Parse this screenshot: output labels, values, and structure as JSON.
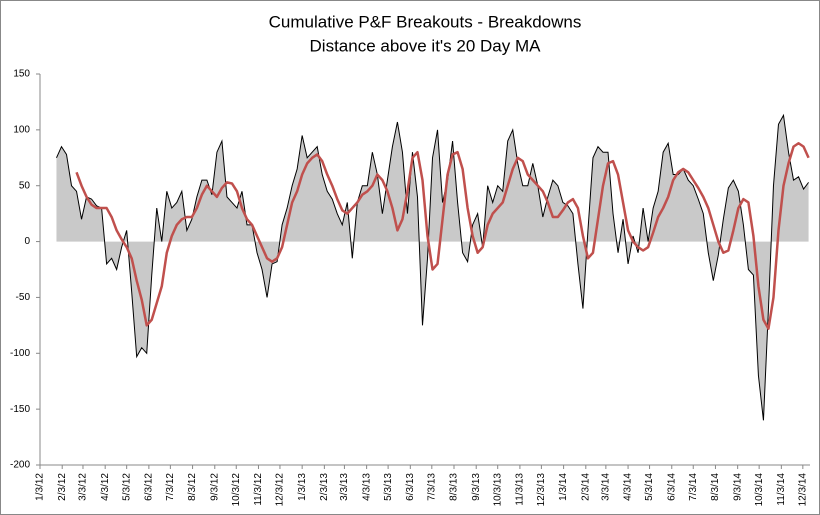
{
  "chart_data": {
    "type": "area",
    "title": "Cumulative P&F Breakouts - Breakdowns",
    "subtitle": "Distance above it's 20 Day MA",
    "x": [
      "2012-01-26",
      "2012-02-02",
      "2012-02-09",
      "2012-02-16",
      "2012-02-23",
      "2012-03-01",
      "2012-03-08",
      "2012-03-15",
      "2012-03-22",
      "2012-03-29",
      "2012-04-05",
      "2012-04-12",
      "2012-04-19",
      "2012-04-26",
      "2012-05-03",
      "2012-05-10",
      "2012-05-17",
      "2012-05-24",
      "2012-05-31",
      "2012-06-07",
      "2012-06-14",
      "2012-06-21",
      "2012-06-28",
      "2012-07-05",
      "2012-07-12",
      "2012-07-19",
      "2012-07-26",
      "2012-08-02",
      "2012-08-09",
      "2012-08-16",
      "2012-08-23",
      "2012-08-30",
      "2012-09-06",
      "2012-09-13",
      "2012-09-20",
      "2012-09-27",
      "2012-10-04",
      "2012-10-11",
      "2012-10-18",
      "2012-10-25",
      "2012-11-01",
      "2012-11-08",
      "2012-11-15",
      "2012-11-22",
      "2012-11-29",
      "2012-12-06",
      "2012-12-13",
      "2012-12-20",
      "2012-12-27",
      "2013-01-03",
      "2013-01-10",
      "2013-01-17",
      "2013-01-24",
      "2013-01-31",
      "2013-02-07",
      "2013-02-14",
      "2013-02-21",
      "2013-02-28",
      "2013-03-07",
      "2013-03-14",
      "2013-03-21",
      "2013-03-28",
      "2013-04-04",
      "2013-04-11",
      "2013-04-18",
      "2013-04-25",
      "2013-05-02",
      "2013-05-09",
      "2013-05-16",
      "2013-05-23",
      "2013-05-30",
      "2013-06-06",
      "2013-06-13",
      "2013-06-20",
      "2013-06-27",
      "2013-07-04",
      "2013-07-11",
      "2013-07-18",
      "2013-07-25",
      "2013-08-01",
      "2013-08-08",
      "2013-08-15",
      "2013-08-22",
      "2013-08-29",
      "2013-09-05",
      "2013-09-12",
      "2013-09-19",
      "2013-09-26",
      "2013-10-03",
      "2013-10-10",
      "2013-10-17",
      "2013-10-24",
      "2013-10-31",
      "2013-11-07",
      "2013-11-14",
      "2013-11-21",
      "2013-11-28",
      "2013-12-05",
      "2013-12-12",
      "2013-12-19",
      "2013-12-26",
      "2014-01-02",
      "2014-01-09",
      "2014-01-16",
      "2014-01-23",
      "2014-01-30",
      "2014-02-06",
      "2014-02-13",
      "2014-02-20",
      "2014-02-27",
      "2014-03-06",
      "2014-03-13",
      "2014-03-20",
      "2014-03-27",
      "2014-04-03",
      "2014-04-10",
      "2014-04-17",
      "2014-04-24",
      "2014-05-01",
      "2014-05-08",
      "2014-05-15",
      "2014-05-22",
      "2014-05-29",
      "2014-06-05",
      "2014-06-12",
      "2014-06-19",
      "2014-06-26",
      "2014-07-03",
      "2014-07-10",
      "2014-07-17",
      "2014-07-24",
      "2014-07-31",
      "2014-08-07",
      "2014-08-14",
      "2014-08-21",
      "2014-08-28",
      "2014-09-04",
      "2014-09-11",
      "2014-09-18",
      "2014-09-25",
      "2014-10-02",
      "2014-10-09",
      "2014-10-16",
      "2014-10-23",
      "2014-10-30",
      "2014-11-06",
      "2014-11-13",
      "2014-11-20",
      "2014-11-27",
      "2014-12-04",
      "2014-12-11"
    ],
    "series": [
      {
        "type": "area",
        "color": "#c9c9c9",
        "line_color": "#000000",
        "values": [
          75,
          85,
          78,
          50,
          45,
          20,
          40,
          38,
          32,
          30,
          -20,
          -15,
          -25,
          -5,
          10,
          -45,
          -103,
          -95,
          -100,
          -30,
          30,
          0,
          45,
          30,
          35,
          45,
          10,
          20,
          40,
          55,
          55,
          42,
          80,
          90,
          40,
          35,
          30,
          45,
          15,
          15,
          -10,
          -25,
          -50,
          -20,
          -18,
          15,
          30,
          50,
          65,
          95,
          75,
          80,
          85,
          60,
          45,
          38,
          25,
          15,
          35,
          -15,
          35,
          50,
          50,
          80,
          60,
          25,
          55,
          85,
          107,
          80,
          25,
          80,
          40,
          -75,
          -15,
          75,
          100,
          35,
          55,
          90,
          35,
          -10,
          -18,
          15,
          25,
          -5,
          50,
          35,
          50,
          45,
          90,
          100,
          70,
          50,
          50,
          70,
          50,
          22,
          40,
          55,
          50,
          35,
          32,
          25,
          -20,
          -60,
          10,
          75,
          85,
          80,
          80,
          25,
          -10,
          20,
          -20,
          5,
          -10,
          30,
          0,
          30,
          45,
          80,
          88,
          60,
          60,
          65,
          55,
          50,
          38,
          25,
          -10,
          -35,
          -12,
          20,
          48,
          55,
          45,
          15,
          -25,
          -30,
          -120,
          -160,
          -60,
          50,
          105,
          113,
          80,
          55,
          58,
          47,
          53
        ]
      },
      {
        "type": "line",
        "color": "#c0504d",
        "values": [
          null,
          null,
          null,
          null,
          62,
          50,
          40,
          33,
          30,
          30,
          30,
          22,
          10,
          2,
          -5,
          -15,
          -35,
          -52,
          -75,
          -70,
          -55,
          -40,
          -10,
          5,
          15,
          20,
          22,
          22,
          30,
          42,
          50,
          45,
          40,
          48,
          53,
          52,
          45,
          30,
          20,
          15,
          5,
          -5,
          -15,
          -18,
          -15,
          -5,
          15,
          35,
          45,
          60,
          70,
          75,
          78,
          72,
          60,
          50,
          38,
          28,
          25,
          30,
          35,
          42,
          45,
          50,
          60,
          55,
          45,
          30,
          10,
          20,
          45,
          75,
          80,
          55,
          5,
          -25,
          -20,
          20,
          60,
          78,
          80,
          65,
          30,
          5,
          -10,
          -5,
          15,
          25,
          30,
          35,
          50,
          65,
          75,
          72,
          60,
          55,
          50,
          45,
          35,
          22,
          22,
          28,
          35,
          38,
          30,
          5,
          -15,
          -10,
          20,
          50,
          70,
          72,
          60,
          35,
          10,
          0,
          -5,
          -8,
          -5,
          8,
          22,
          30,
          40,
          55,
          62,
          65,
          62,
          55,
          48,
          40,
          30,
          15,
          0,
          -10,
          -8,
          10,
          30,
          38,
          35,
          5,
          -40,
          -70,
          -78,
          -50,
          10,
          50,
          70,
          85,
          88,
          85,
          75
        ]
      }
    ],
    "xlim": [
      "2012-01-03",
      "2014-12-13"
    ],
    "xticks": [
      {
        "value": "2012-01-03",
        "label": "1/3/12"
      },
      {
        "value": "2012-02-03",
        "label": "2/3/12"
      },
      {
        "value": "2012-03-03",
        "label": "3/3/12"
      },
      {
        "value": "2012-04-03",
        "label": "4/3/12"
      },
      {
        "value": "2012-05-03",
        "label": "5/3/12"
      },
      {
        "value": "2012-06-03",
        "label": "6/3/12"
      },
      {
        "value": "2012-07-03",
        "label": "7/3/12"
      },
      {
        "value": "2012-08-03",
        "label": "8/3/12"
      },
      {
        "value": "2012-09-03",
        "label": "9/3/12"
      },
      {
        "value": "2012-10-03",
        "label": "10/3/12"
      },
      {
        "value": "2012-11-03",
        "label": "11/3/12"
      },
      {
        "value": "2012-12-03",
        "label": "12/3/12"
      },
      {
        "value": "2013-01-03",
        "label": "1/3/13"
      },
      {
        "value": "2013-02-03",
        "label": "2/3/13"
      },
      {
        "value": "2013-03-03",
        "label": "3/3/13"
      },
      {
        "value": "2013-04-03",
        "label": "4/3/13"
      },
      {
        "value": "2013-05-03",
        "label": "5/3/13"
      },
      {
        "value": "2013-06-03",
        "label": "6/3/13"
      },
      {
        "value": "2013-07-03",
        "label": "7/3/13"
      },
      {
        "value": "2013-08-03",
        "label": "8/3/13"
      },
      {
        "value": "2013-09-03",
        "label": "9/3/13"
      },
      {
        "value": "2013-10-03",
        "label": "10/3/13"
      },
      {
        "value": "2013-11-03",
        "label": "11/3/13"
      },
      {
        "value": "2013-12-03",
        "label": "12/3/13"
      },
      {
        "value": "2014-01-03",
        "label": "1/3/14"
      },
      {
        "value": "2014-02-03",
        "label": "2/3/14"
      },
      {
        "value": "2014-03-03",
        "label": "3/3/14"
      },
      {
        "value": "2014-04-03",
        "label": "4/3/14"
      },
      {
        "value": "2014-05-03",
        "label": "5/3/14"
      },
      {
        "value": "2014-06-03",
        "label": "6/3/14"
      },
      {
        "value": "2014-07-03",
        "label": "7/3/14"
      },
      {
        "value": "2014-08-03",
        "label": "8/3/14"
      },
      {
        "value": "2014-09-03",
        "label": "9/3/14"
      },
      {
        "value": "2014-10-03",
        "label": "10/3/14"
      },
      {
        "value": "2014-11-03",
        "label": "11/3/14"
      },
      {
        "value": "2014-12-03",
        "label": "12/3/14"
      }
    ],
    "ylim": [
      -200,
      150
    ],
    "yticks": [
      -200,
      -150,
      -100,
      -50,
      0,
      50,
      100,
      150
    ],
    "grid": false
  }
}
